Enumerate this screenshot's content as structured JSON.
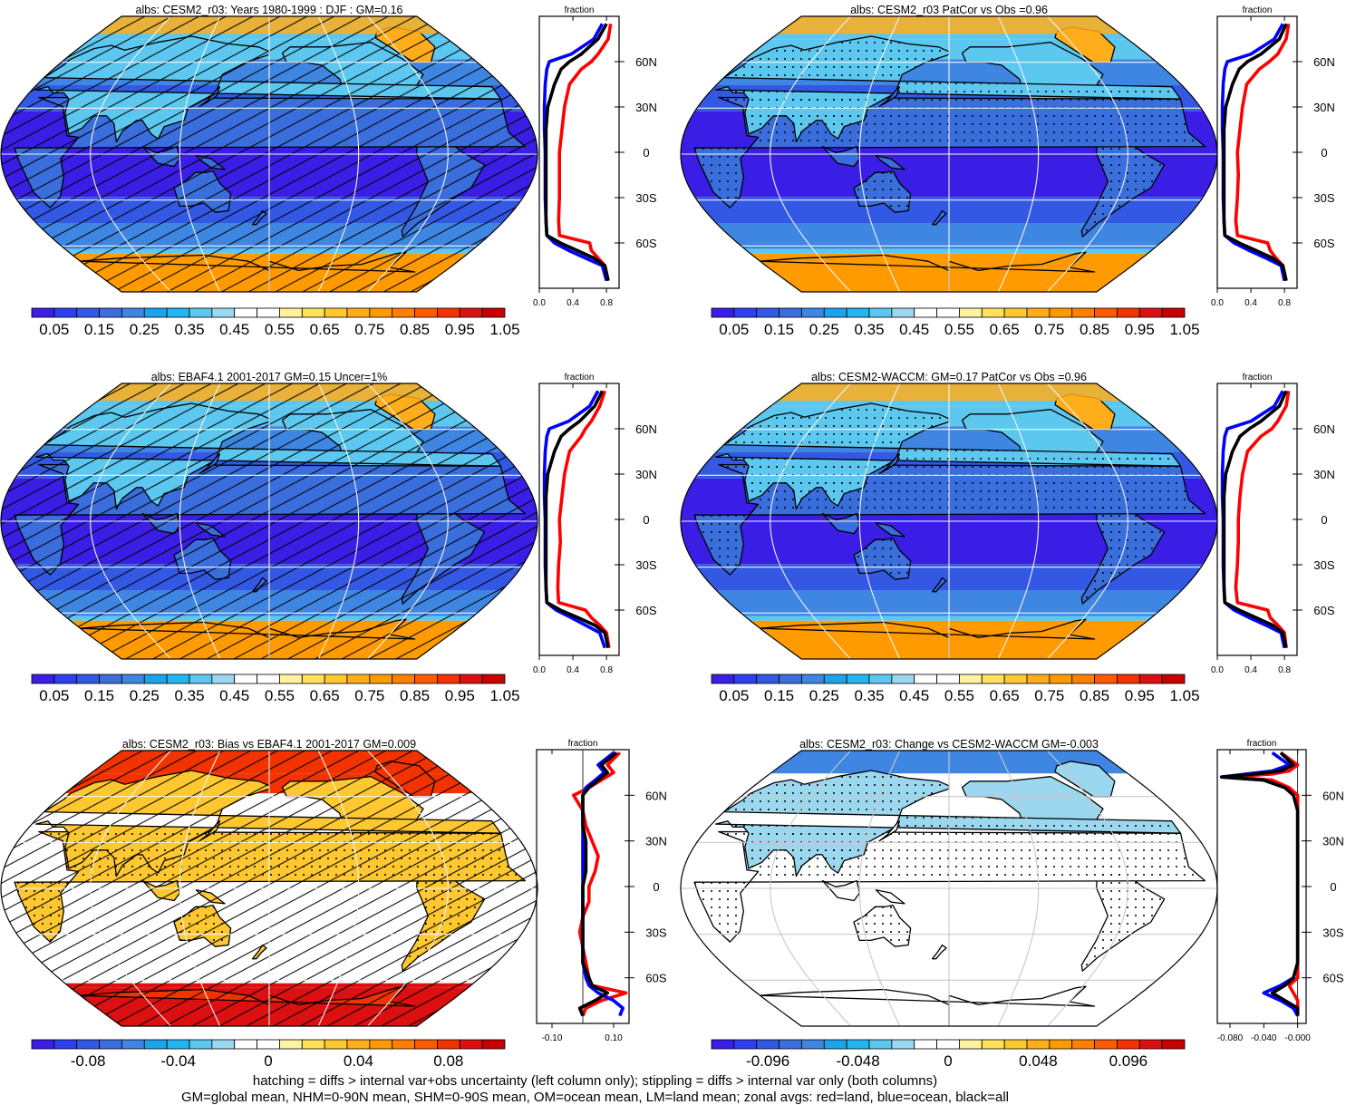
{
  "panels": [
    {
      "title": "albs: CESM2_r03: Years 1980-1999 : DJF : GM=0.16",
      "kind": "mean",
      "hatching": true,
      "stippling": false,
      "colorbar": {
        "labels": [
          "0.05",
          "0.15",
          "0.25",
          "0.35",
          "0.45",
          "0.55",
          "0.65",
          "0.75",
          "0.85",
          "0.95",
          "1.05"
        ]
      },
      "zonal": {
        "header": "fraction",
        "ticks": [
          "0.0",
          "0.4",
          "0.8"
        ],
        "xrange": [
          0.0,
          0.95
        ],
        "lat_labels": [
          "60N",
          "30N",
          "0",
          "30S",
          "60S"
        ]
      }
    },
    {
      "title": "albs: CESM2_r03 PatCor vs Obs =0.96",
      "kind": "mean",
      "hatching": false,
      "stippling": true,
      "colorbar": {
        "labels": [
          "0.05",
          "0.15",
          "0.25",
          "0.35",
          "0.45",
          "0.55",
          "0.65",
          "0.75",
          "0.85",
          "0.95",
          "1.05"
        ]
      },
      "zonal": {
        "header": "fraction",
        "ticks": [
          "0.0",
          "0.4",
          "0.8"
        ],
        "xrange": [
          0.0,
          0.95
        ],
        "lat_labels": [
          "60N",
          "30N",
          "0",
          "30S",
          "60S"
        ]
      }
    },
    {
      "title": "albs: EBAF4.1 2001-2017 GM=0.15 Uncer=1%",
      "kind": "mean",
      "hatching": true,
      "stippling": false,
      "colorbar": {
        "labels": [
          "0.05",
          "0.15",
          "0.25",
          "0.35",
          "0.45",
          "0.55",
          "0.65",
          "0.75",
          "0.85",
          "0.95",
          "1.05"
        ]
      },
      "zonal": {
        "header": "fraction",
        "ticks": [
          "0.0",
          "0.4",
          "0.8"
        ],
        "xrange": [
          0.0,
          0.95
        ],
        "lat_labels": [
          "60N",
          "30N",
          "0",
          "30S",
          "60S"
        ]
      }
    },
    {
      "title": "albs: CESM2-WACCM: GM=0.17 PatCor vs Obs =0.96",
      "kind": "mean",
      "hatching": false,
      "stippling": true,
      "colorbar": {
        "labels": [
          "0.05",
          "0.15",
          "0.25",
          "0.35",
          "0.45",
          "0.55",
          "0.65",
          "0.75",
          "0.85",
          "0.95",
          "1.05"
        ]
      },
      "zonal": {
        "header": "fraction",
        "ticks": [
          "0.0",
          "0.4",
          "0.8"
        ],
        "xrange": [
          0.0,
          0.95
        ],
        "lat_labels": [
          "60N",
          "30N",
          "0",
          "30S",
          "60S"
        ]
      }
    },
    {
      "title": "albs: CESM2_r03: Bias vs EBAF4.1 2001-2017 GM=0.009",
      "kind": "bias",
      "hatching": true,
      "stippling": true,
      "colorbar": {
        "labels": [
          "-0.08",
          "-0.04",
          "0",
          "0.04",
          "0.08"
        ]
      },
      "zonal": {
        "header": "fraction",
        "ticks": [
          "-0.10",
          "0.10"
        ],
        "xrange": [
          -0.15,
          0.15
        ],
        "lat_labels": [
          "60N",
          "30N",
          "0",
          "30S",
          "60S"
        ]
      }
    },
    {
      "title": "albs: CESM2_r03: Change vs CESM2-WACCM GM=-0.003",
      "kind": "change",
      "hatching": false,
      "stippling": true,
      "colorbar": {
        "labels": [
          "-0.096",
          "-0.048",
          "0",
          "0.048",
          "0.096"
        ]
      },
      "zonal": {
        "header": "fraction",
        "ticks": [
          "-0.080",
          "-0.040",
          "-0.000"
        ],
        "xrange": [
          -0.095,
          0.01
        ],
        "lat_labels": [
          "60N",
          "30N",
          "0",
          "30S",
          "60S"
        ]
      }
    }
  ],
  "footnote": {
    "line1": "hatching = diffs > internal var+obs uncertainty (left column only); stippling = diffs > internal var only (both columns)",
    "line2": "GM=global mean, NHM=0-90N mean, SHM=0-90S mean, OM=ocean mean, LM=land mean; zonal avgs: red=land, blue=ocean, black=all"
  },
  "colors": {
    "seq": [
      "#3a1ee6",
      "#2e3ff0",
      "#3358e4",
      "#3a6edc",
      "#3f86e3",
      "#1ca4ea",
      "#21b6f0",
      "#5cc8f0",
      "#9bd8ef",
      "#ffffff",
      "#ffffff",
      "#fff3a0",
      "#ffe15a",
      "#ffc830",
      "#ffad1a",
      "#ff9a00",
      "#ff8000",
      "#ff5a00",
      "#f23300",
      "#dc1010",
      "#c80000"
    ],
    "div": [
      "#3a1ee6",
      "#2e3ff0",
      "#3358e4",
      "#3a6edc",
      "#3f86e3",
      "#1ca4ea",
      "#21b6f0",
      "#5cc8f0",
      "#9bd8ef",
      "#ffffff",
      "#ffffff",
      "#fff3a0",
      "#ffe15a",
      "#ffc830",
      "#ffad1a",
      "#ff9a00",
      "#ff8000",
      "#ff5a00",
      "#f23300",
      "#dc1010",
      "#c80000"
    ],
    "land_line": "#ff0000",
    "ocean_line": "#0000ff",
    "all_line": "#000000"
  },
  "chart_data": [
    {
      "type": "heatmap",
      "title": "albs: CESM2_r03: Years 1980-1999 : DJF : GM=0.16",
      "projection": "Robinson",
      "colorbar_range": [
        0.0,
        1.1
      ],
      "zonal": {
        "lat": [
          85,
          75,
          65,
          60,
          55,
          45,
          30,
          15,
          0,
          -15,
          -30,
          -45,
          -55,
          -60,
          -65,
          -70,
          -75,
          -85
        ],
        "land": [
          0.85,
          0.82,
          0.7,
          0.62,
          0.5,
          0.36,
          0.3,
          0.27,
          0.24,
          0.24,
          0.24,
          0.23,
          0.24,
          0.6,
          0.62,
          0.7,
          0.78,
          0.82
        ],
        "ocean": [
          0.75,
          0.65,
          0.38,
          0.12,
          0.09,
          0.07,
          0.06,
          0.06,
          0.07,
          0.07,
          0.07,
          0.08,
          0.09,
          0.18,
          0.35,
          0.55,
          0.75,
          0.8
        ],
        "all": [
          0.8,
          0.7,
          0.5,
          0.36,
          0.26,
          0.18,
          0.1,
          0.08,
          0.08,
          0.08,
          0.08,
          0.08,
          0.09,
          0.25,
          0.45,
          0.65,
          0.78,
          0.82
        ]
      }
    },
    {
      "type": "heatmap",
      "title": "albs: CESM2_r03 PatCor vs Obs =0.96",
      "projection": "Robinson",
      "colorbar_range": [
        0.0,
        1.1
      ],
      "zonal": {
        "lat": [
          85,
          75,
          65,
          60,
          55,
          45,
          30,
          15,
          0,
          -15,
          -30,
          -45,
          -55,
          -60,
          -65,
          -70,
          -75,
          -85
        ],
        "land": [
          0.85,
          0.82,
          0.72,
          0.62,
          0.5,
          0.35,
          0.3,
          0.27,
          0.24,
          0.25,
          0.24,
          0.22,
          0.24,
          0.6,
          0.63,
          0.7,
          0.78,
          0.82
        ],
        "ocean": [
          0.78,
          0.68,
          0.4,
          0.12,
          0.09,
          0.07,
          0.06,
          0.06,
          0.07,
          0.07,
          0.07,
          0.08,
          0.09,
          0.2,
          0.38,
          0.58,
          0.76,
          0.8
        ],
        "all": [
          0.82,
          0.74,
          0.52,
          0.36,
          0.26,
          0.18,
          0.1,
          0.08,
          0.08,
          0.08,
          0.08,
          0.08,
          0.09,
          0.26,
          0.46,
          0.66,
          0.78,
          0.82
        ]
      }
    },
    {
      "type": "heatmap",
      "title": "albs: EBAF4.1 2001-2017 GM=0.15 Uncer=1%",
      "projection": "Robinson",
      "colorbar_range": [
        0.0,
        1.1
      ],
      "zonal": {
        "lat": [
          85,
          75,
          65,
          60,
          55,
          45,
          30,
          15,
          0,
          -15,
          -30,
          -45,
          -55,
          -60,
          -65,
          -70,
          -75,
          -85
        ],
        "land": [
          0.78,
          0.72,
          0.62,
          0.55,
          0.5,
          0.36,
          0.3,
          0.27,
          0.24,
          0.25,
          0.23,
          0.22,
          0.23,
          0.55,
          0.62,
          0.72,
          0.8,
          0.83
        ],
        "ocean": [
          0.7,
          0.6,
          0.35,
          0.12,
          0.09,
          0.07,
          0.06,
          0.06,
          0.07,
          0.07,
          0.07,
          0.08,
          0.09,
          0.2,
          0.38,
          0.55,
          0.72,
          0.78
        ],
        "all": [
          0.75,
          0.66,
          0.48,
          0.36,
          0.26,
          0.18,
          0.1,
          0.08,
          0.08,
          0.08,
          0.08,
          0.08,
          0.09,
          0.25,
          0.46,
          0.66,
          0.78,
          0.82
        ]
      }
    },
    {
      "type": "heatmap",
      "title": "albs: CESM2-WACCM: GM=0.17 PatCor vs Obs =0.96",
      "projection": "Robinson",
      "colorbar_range": [
        0.0,
        1.1
      ],
      "zonal": {
        "lat": [
          85,
          75,
          65,
          60,
          55,
          45,
          30,
          15,
          0,
          -15,
          -30,
          -45,
          -55,
          -60,
          -65,
          -70,
          -75,
          -85
        ],
        "land": [
          0.85,
          0.82,
          0.72,
          0.65,
          0.52,
          0.36,
          0.3,
          0.27,
          0.25,
          0.25,
          0.24,
          0.22,
          0.24,
          0.6,
          0.63,
          0.72,
          0.8,
          0.82
        ],
        "ocean": [
          0.78,
          0.68,
          0.4,
          0.12,
          0.09,
          0.07,
          0.06,
          0.06,
          0.07,
          0.07,
          0.07,
          0.08,
          0.09,
          0.2,
          0.38,
          0.58,
          0.76,
          0.8
        ],
        "all": [
          0.82,
          0.74,
          0.52,
          0.38,
          0.27,
          0.18,
          0.1,
          0.08,
          0.08,
          0.08,
          0.08,
          0.08,
          0.09,
          0.26,
          0.46,
          0.66,
          0.78,
          0.82
        ]
      }
    },
    {
      "type": "heatmap",
      "title": "albs: CESM2_r03: Bias vs EBAF4.1 2001-2017 GM=0.009",
      "projection": "Robinson",
      "colorbar_range": [
        -0.11,
        0.11
      ],
      "zonal": {
        "lat": [
          88,
          80,
          75,
          70,
          65,
          60,
          50,
          40,
          30,
          20,
          10,
          0,
          -10,
          -20,
          -30,
          -40,
          -50,
          -60,
          -65,
          -70,
          -75,
          -80,
          -85
        ],
        "land": [
          0.12,
          0.08,
          0.1,
          0.06,
          0.02,
          -0.03,
          0.0,
          0.01,
          0.03,
          0.05,
          0.04,
          0.02,
          0.02,
          0.0,
          -0.01,
          0.0,
          0.01,
          0.02,
          0.03,
          0.14,
          0.06,
          0.01,
          0.0
        ],
        "ocean": [
          0.1,
          0.05,
          0.07,
          0.04,
          0.01,
          0.0,
          0.0,
          0.0,
          0.0,
          0.0,
          0.0,
          0.0,
          0.0,
          0.0,
          0.0,
          0.0,
          0.0,
          0.01,
          0.02,
          0.05,
          0.1,
          0.13,
          0.12
        ],
        "all": [
          0.11,
          0.06,
          0.08,
          0.05,
          0.02,
          0.0,
          0.0,
          0.0,
          0.01,
          0.01,
          0.01,
          0.0,
          0.0,
          0.0,
          0.0,
          0.0,
          0.0,
          0.02,
          0.03,
          0.08,
          0.04,
          -0.01,
          0.0
        ]
      }
    },
    {
      "type": "heatmap",
      "title": "albs: CESM2_r03: Change vs CESM2-WACCM GM=-0.003",
      "projection": "Robinson",
      "colorbar_range": [
        -0.12,
        0.12
      ],
      "zonal": {
        "lat": [
          88,
          80,
          76,
          74,
          72,
          70,
          65,
          60,
          50,
          40,
          30,
          20,
          10,
          0,
          -10,
          -20,
          -30,
          -40,
          -50,
          -60,
          -65,
          -70,
          -75,
          -80,
          -85
        ],
        "land": [
          -0.02,
          0.0,
          -0.01,
          -0.03,
          -0.08,
          -0.03,
          -0.01,
          0.0,
          0.0,
          0.0,
          0.0,
          0.0,
          0.0,
          0.0,
          0.0,
          0.0,
          0.0,
          0.0,
          0.0,
          0.0,
          -0.01,
          -0.005,
          0.0,
          0.0,
          0.0
        ],
        "ocean": [
          -0.03,
          -0.01,
          -0.03,
          -0.06,
          -0.09,
          -0.04,
          -0.015,
          -0.005,
          0.0,
          0.0,
          0.0,
          0.0,
          0.0,
          0.0,
          0.0,
          0.0,
          0.0,
          0.0,
          0.0,
          -0.005,
          -0.02,
          -0.04,
          -0.02,
          -0.005,
          0.0
        ],
        "all": [
          -0.02,
          -0.005,
          -0.02,
          -0.05,
          -0.09,
          -0.04,
          -0.015,
          -0.005,
          0.0,
          0.0,
          0.0,
          0.0,
          0.0,
          0.0,
          0.0,
          0.0,
          0.0,
          0.0,
          0.0,
          -0.005,
          -0.015,
          -0.03,
          -0.015,
          0.0,
          0.0
        ]
      }
    }
  ]
}
